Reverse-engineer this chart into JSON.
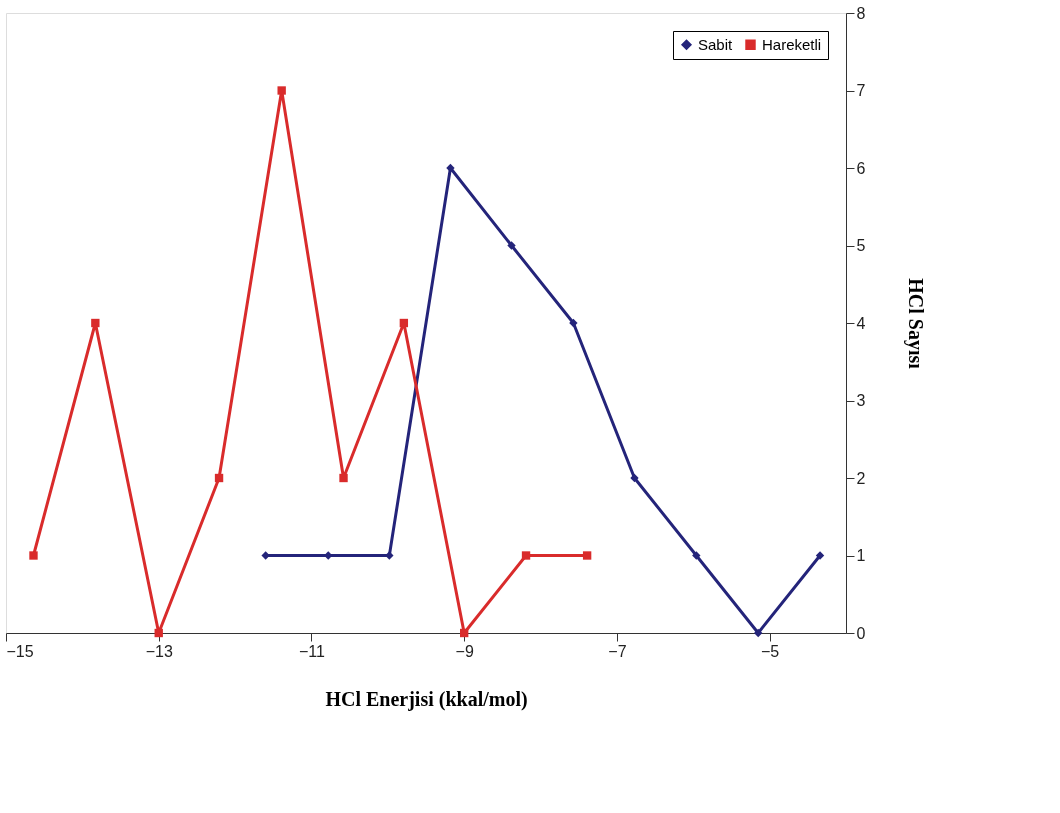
{
  "chart_data": {
    "type": "line",
    "xlabel": "HCl Enerjisi (kkal/mol)",
    "ylabel": "HCl Sayısı",
    "xlim": [
      -15,
      -4
    ],
    "xticks": [
      -15,
      -13,
      -11,
      -9,
      -7,
      -5
    ],
    "ylim": [
      0,
      8
    ],
    "yticks": [
      0,
      1,
      2,
      3,
      4,
      5,
      6,
      7,
      8
    ],
    "grid": false,
    "legend": "top right",
    "line_style": "solid",
    "series": [
      {
        "name": "Sabit",
        "color": "#24247a",
        "marker": "diamond",
        "x": [
          -11.6,
          -10.78,
          -9.98,
          -9.18,
          -8.38,
          -7.57,
          -6.77,
          -5.96,
          -5.15,
          -4.34
        ],
        "values": [
          1,
          1,
          1,
          6,
          5,
          4,
          2,
          1,
          0,
          1
        ]
      },
      {
        "name": "Hareketli",
        "color": "#d92b2b",
        "marker": "square",
        "x": [
          -14.64,
          -13.83,
          -13.0,
          -12.21,
          -11.39,
          -10.58,
          -9.79,
          -9.0,
          -8.19,
          -7.39
        ],
        "values": [
          1,
          4,
          0,
          2,
          7,
          2,
          4,
          0,
          1,
          1
        ]
      }
    ]
  }
}
